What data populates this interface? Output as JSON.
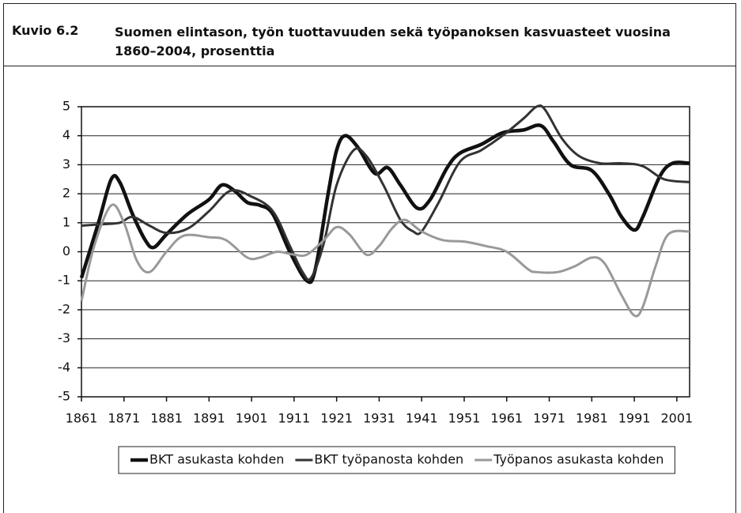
{
  "figure_label": "Kuvio 6.2",
  "chart_data": {
    "type": "line",
    "title": "Suomen elintason, työn tuottavuuden sekä työpanoksen kasvuasteet vuosina 1860–2004, prosenttia",
    "xlim": [
      1861,
      2004
    ],
    "xticks": [
      1861,
      1871,
      1881,
      1891,
      1901,
      1911,
      1921,
      1931,
      1941,
      1951,
      1961,
      1971,
      1981,
      1991,
      2001
    ],
    "ylim": [
      -5,
      5
    ],
    "yticks": [
      -5,
      -4,
      -3,
      -2,
      -1,
      0,
      1,
      2,
      3,
      4,
      5
    ],
    "grid": true,
    "legend": "bottom",
    "series": [
      {
        "name": "BKT asukasta kohden",
        "color": "#111111",
        "x": [
          1861,
          1865,
          1868,
          1870,
          1873,
          1876,
          1878,
          1881,
          1886,
          1891,
          1894,
          1897,
          1900,
          1903,
          1906,
          1910,
          1914,
          1916,
          1919,
          1921,
          1923,
          1926,
          1930,
          1933,
          1936,
          1940,
          1943,
          1947,
          1950,
          1955,
          1960,
          1965,
          1969,
          1972,
          1976,
          1981,
          1985,
          1988,
          1991,
          1993,
          1997,
          2000,
          2004
        ],
        "values": [
          -0.9,
          1.0,
          2.5,
          2.4,
          1.3,
          0.4,
          0.15,
          0.6,
          1.3,
          1.8,
          2.3,
          2.1,
          1.7,
          1.6,
          1.3,
          0,
          -1.0,
          -0.6,
          2.0,
          3.5,
          4.0,
          3.6,
          2.7,
          2.9,
          2.3,
          1.5,
          1.8,
          2.9,
          3.4,
          3.7,
          4.1,
          4.2,
          4.35,
          3.8,
          3.0,
          2.8,
          2.0,
          1.2,
          0.75,
          1.2,
          2.6,
          3.05,
          3.05
        ]
      },
      {
        "name": "BKT työpanosta kohden",
        "color": "#333333",
        "x": [
          1861,
          1866,
          1870,
          1873,
          1877,
          1881,
          1886,
          1891,
          1896,
          1901,
          1906,
          1910,
          1913,
          1915,
          1918,
          1921,
          1925,
          1928,
          1932,
          1936,
          1939,
          1941,
          1945,
          1950,
          1955,
          1960,
          1965,
          1968,
          1970,
          1974,
          1978,
          1983,
          1988,
          1993,
          1998,
          2004
        ],
        "values": [
          0.9,
          0.95,
          1.0,
          1.2,
          0.9,
          0.65,
          0.8,
          1.4,
          2.1,
          1.9,
          1.4,
          0.2,
          -0.7,
          -0.9,
          0.3,
          2.3,
          3.5,
          3.3,
          2.3,
          1.1,
          0.7,
          0.7,
          1.7,
          3.1,
          3.5,
          4.0,
          4.6,
          5.0,
          4.9,
          3.9,
          3.3,
          3.05,
          3.05,
          2.95,
          2.5,
          2.4
        ]
      },
      {
        "name": "Työpanos asukasta kohden",
        "color": "#999999",
        "x": [
          1861,
          1864,
          1868,
          1871,
          1874,
          1877,
          1881,
          1885,
          1891,
          1895,
          1900,
          1903,
          1907,
          1911,
          1914,
          1918,
          1921,
          1924,
          1928,
          1931,
          1934,
          1937,
          1941,
          1946,
          1951,
          1956,
          1961,
          1966,
          1968,
          1973,
          1977,
          1981,
          1984,
          1988,
          1991,
          1993,
          1996,
          1999,
          2004
        ],
        "values": [
          -1.7,
          0.2,
          1.6,
          1.0,
          -0.3,
          -0.7,
          0.0,
          0.55,
          0.5,
          0.4,
          -0.2,
          -0.2,
          0.0,
          -0.1,
          -0.1,
          0.4,
          0.85,
          0.6,
          -0.1,
          0.2,
          0.8,
          1.1,
          0.7,
          0.4,
          0.35,
          0.2,
          0.0,
          -0.6,
          -0.7,
          -0.7,
          -0.5,
          -0.2,
          -0.4,
          -1.5,
          -2.2,
          -1.9,
          -0.5,
          0.6,
          0.7
        ]
      }
    ]
  }
}
